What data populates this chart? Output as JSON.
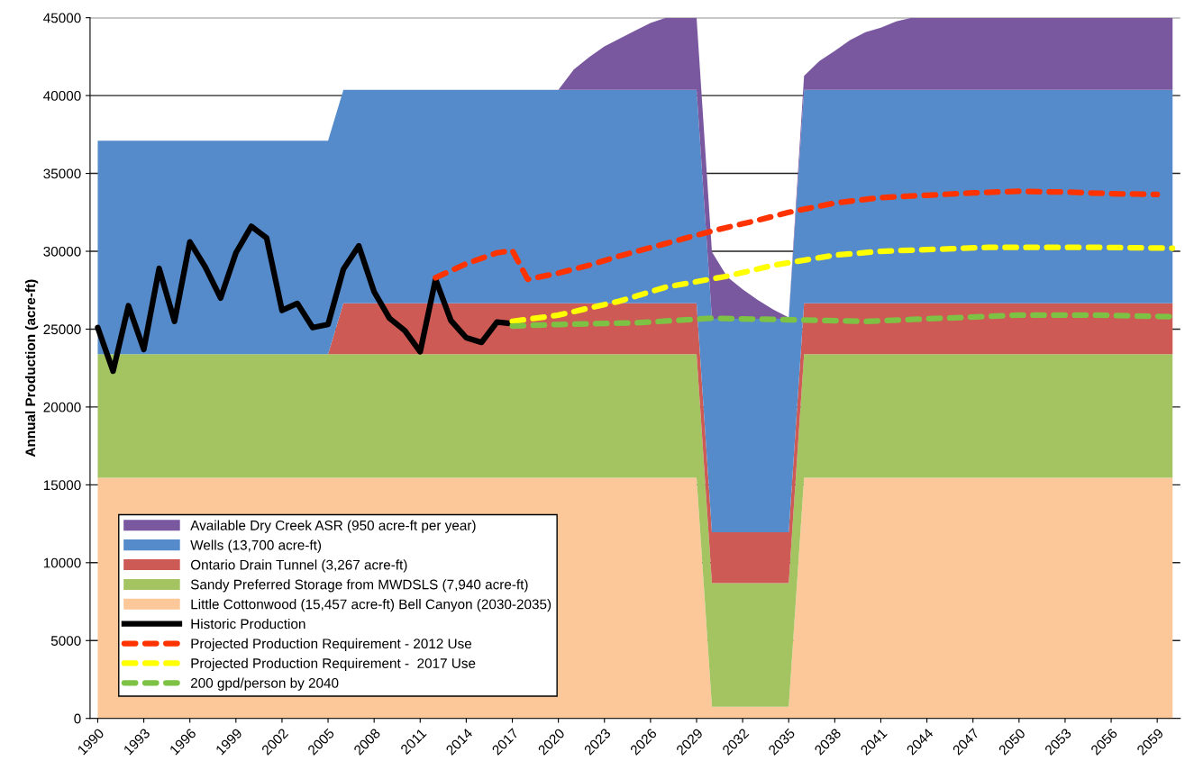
{
  "chart_data": {
    "type": "area",
    "stacked": true,
    "ylabel": "Annual Production (acre-ft)",
    "x": [
      1990,
      1991,
      1992,
      1993,
      1994,
      1995,
      1996,
      1997,
      1998,
      1999,
      2000,
      2001,
      2002,
      2003,
      2004,
      2005,
      2006,
      2007,
      2008,
      2009,
      2010,
      2011,
      2012,
      2013,
      2014,
      2015,
      2016,
      2017,
      2018,
      2019,
      2020,
      2021,
      2022,
      2023,
      2024,
      2025,
      2026,
      2027,
      2028,
      2029,
      2030,
      2031,
      2032,
      2033,
      2034,
      2035,
      2036,
      2037,
      2038,
      2039,
      2040,
      2041,
      2042,
      2043,
      2044,
      2045,
      2046,
      2047,
      2048,
      2049,
      2050,
      2051,
      2052,
      2053,
      2054,
      2055,
      2056,
      2057,
      2058,
      2059,
      2060
    ],
    "xlim": [
      1989.5,
      2060.5
    ],
    "xticks": [
      1990,
      1993,
      1996,
      1999,
      2002,
      2005,
      2008,
      2011,
      2014,
      2017,
      2020,
      2023,
      2026,
      2029,
      2032,
      2035,
      2038,
      2041,
      2044,
      2047,
      2050,
      2053,
      2056,
      2059
    ],
    "ylim": [
      0,
      45000
    ],
    "yticks": [
      0,
      5000,
      10000,
      15000,
      20000,
      25000,
      30000,
      35000,
      40000,
      45000
    ],
    "grid": "y",
    "legend": "bottom left",
    "series": [
      {
        "name": "Little Cottonwood (15,457 acre-ft) Bell Canyon (2030-2035)",
        "color": "#fdc899",
        "values": [
          15457,
          15457,
          15457,
          15457,
          15457,
          15457,
          15457,
          15457,
          15457,
          15457,
          15457,
          15457,
          15457,
          15457,
          15457,
          15457,
          15457,
          15457,
          15457,
          15457,
          15457,
          15457,
          15457,
          15457,
          15457,
          15457,
          15457,
          15457,
          15457,
          15457,
          15457,
          15457,
          15457,
          15457,
          15457,
          15457,
          15457,
          15457,
          15457,
          15457,
          750,
          750,
          750,
          750,
          750,
          750,
          15457,
          15457,
          15457,
          15457,
          15457,
          15457,
          15457,
          15457,
          15457,
          15457,
          15457,
          15457,
          15457,
          15457,
          15457,
          15457,
          15457,
          15457,
          15457,
          15457,
          15457,
          15457,
          15457,
          15457,
          15457
        ]
      },
      {
        "name": "Sandy Preferred Storage from MWDSLS (7,940 acre-ft)",
        "color": "#a4c462",
        "values": [
          7940,
          7940,
          7940,
          7940,
          7940,
          7940,
          7940,
          7940,
          7940,
          7940,
          7940,
          7940,
          7940,
          7940,
          7940,
          7940,
          7940,
          7940,
          7940,
          7940,
          7940,
          7940,
          7940,
          7940,
          7940,
          7940,
          7940,
          7940,
          7940,
          7940,
          7940,
          7940,
          7940,
          7940,
          7940,
          7940,
          7940,
          7940,
          7940,
          7940,
          7940,
          7940,
          7940,
          7940,
          7940,
          7940,
          7940,
          7940,
          7940,
          7940,
          7940,
          7940,
          7940,
          7940,
          7940,
          7940,
          7940,
          7940,
          7940,
          7940,
          7940,
          7940,
          7940,
          7940,
          7940,
          7940,
          7940,
          7940,
          7940,
          7940,
          7940
        ]
      },
      {
        "name": "Ontario Drain Tunnel (3,267 acre-ft)",
        "color": "#cd5a55",
        "values": [
          0,
          0,
          0,
          0,
          0,
          0,
          0,
          0,
          0,
          0,
          0,
          0,
          0,
          0,
          0,
          0,
          3267,
          3267,
          3267,
          3267,
          3267,
          3267,
          3267,
          3267,
          3267,
          3267,
          3267,
          3267,
          3267,
          3267,
          3267,
          3267,
          3267,
          3267,
          3267,
          3267,
          3267,
          3267,
          3267,
          3267,
          3267,
          3267,
          3267,
          3267,
          3267,
          3267,
          3267,
          3267,
          3267,
          3267,
          3267,
          3267,
          3267,
          3267,
          3267,
          3267,
          3267,
          3267,
          3267,
          3267,
          3267,
          3267,
          3267,
          3267,
          3267,
          3267,
          3267,
          3267,
          3267,
          3267,
          3267
        ]
      },
      {
        "name": "Wells (13,700 acre-ft)",
        "color": "#558bcb",
        "values": [
          13700,
          13700,
          13700,
          13700,
          13700,
          13700,
          13700,
          13700,
          13700,
          13700,
          13700,
          13700,
          13700,
          13700,
          13700,
          13700,
          13700,
          13700,
          13700,
          13700,
          13700,
          13700,
          13700,
          13700,
          13700,
          13700,
          13700,
          13700,
          13700,
          13700,
          13700,
          13700,
          13700,
          13700,
          13700,
          13700,
          13700,
          13700,
          13700,
          13700,
          13700,
          13700,
          13700,
          13700,
          13700,
          13700,
          13700,
          13700,
          13700,
          13700,
          13700,
          13700,
          13700,
          13700,
          13700,
          13700,
          13700,
          13700,
          13700,
          13700,
          13700,
          13700,
          13700,
          13700,
          13700,
          13700,
          13700,
          13700,
          13700,
          13700,
          13700
        ]
      },
      {
        "name": "Available Dry Creek ASR (950 acre-ft per year)",
        "color": "#7a58a0",
        "values": [
          0,
          0,
          0,
          0,
          0,
          0,
          0,
          0,
          0,
          0,
          0,
          0,
          0,
          0,
          0,
          0,
          0,
          0,
          0,
          0,
          0,
          0,
          0,
          0,
          0,
          0,
          0,
          0,
          0,
          0,
          0,
          1300,
          2100,
          2800,
          3300,
          3800,
          4300,
          4636,
          4636,
          4636,
          4300,
          2700,
          1900,
          1200,
          600,
          100,
          900,
          1850,
          2500,
          3200,
          3700,
          4000,
          4400,
          4636,
          4636,
          4636,
          4636,
          4636,
          4636,
          4636,
          4636,
          4636,
          4636,
          4636,
          4636,
          4636,
          4636,
          4636,
          4636,
          4636,
          4636
        ]
      },
      {
        "name": "Historic Production",
        "type": "line",
        "line_style": "solid",
        "color": "#000000",
        "x": [
          1990,
          1991,
          1992,
          1993,
          1994,
          1995,
          1996,
          1997,
          1998,
          1999,
          2000,
          2001,
          2002,
          2003,
          2004,
          2005,
          2006,
          2007,
          2008,
          2009,
          2010,
          2011,
          2012,
          2013,
          2014,
          2015,
          2016,
          2017
        ],
        "values": [
          25100,
          22300,
          26500,
          23700,
          28900,
          25500,
          30600,
          29000,
          27000,
          29900,
          31600,
          30850,
          26200,
          26650,
          25100,
          25300,
          28850,
          30350,
          27400,
          25700,
          24900,
          23550,
          28200,
          25550,
          24450,
          24150,
          25450,
          25350
        ]
      },
      {
        "name": "Projected Production Requirement - 2012 Use",
        "type": "line",
        "line_style": "dashed",
        "color": "#ff3300",
        "x": [
          2012,
          2014,
          2016,
          2017,
          2018,
          2020,
          2022,
          2024,
          2027,
          2030,
          2033,
          2035,
          2038,
          2041,
          2044,
          2047,
          2050,
          2053,
          2056,
          2059
        ],
        "values": [
          28300,
          29200,
          29900,
          30050,
          28200,
          28600,
          29100,
          29700,
          30500,
          31300,
          32000,
          32500,
          33100,
          33450,
          33600,
          33750,
          33850,
          33800,
          33700,
          33650
        ]
      },
      {
        "name": "Projected Production Requirement -  2017 Use",
        "type": "line",
        "line_style": "dashed",
        "color": "#ffff00",
        "x": [
          2017,
          2020,
          2024,
          2027,
          2031,
          2034,
          2038,
          2041,
          2048,
          2055,
          2060
        ],
        "values": [
          25500,
          25900,
          26800,
          27700,
          28400,
          29100,
          29750,
          30000,
          30250,
          30250,
          30200
        ]
      },
      {
        "name": "200 gpd/person by 2040",
        "type": "line",
        "line_style": "dashed",
        "color": "#7dc244",
        "x": [
          2017,
          2020,
          2025,
          2030,
          2035,
          2040,
          2045,
          2050,
          2055,
          2060
        ],
        "values": [
          25200,
          25300,
          25400,
          25700,
          25600,
          25500,
          25700,
          25900,
          25900,
          25800
        ]
      }
    ]
  }
}
